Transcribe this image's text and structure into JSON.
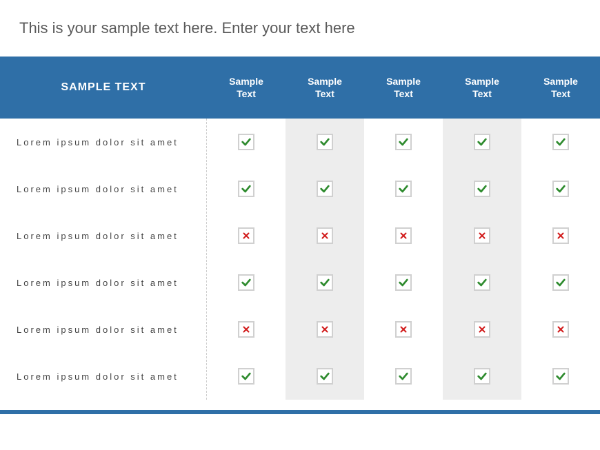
{
  "title": "This is your sample text here. Enter your text here",
  "colors": {
    "header_bg": "#2f6fa7",
    "shaded_col": "#ededed",
    "check": "#2e8b2e",
    "cross": "#d11a1a",
    "title_text": "#5a5a5a",
    "row_text": "#444444"
  },
  "table": {
    "label_header": "SAMPLE TEXT",
    "columns": [
      {
        "label": "Sample\nText",
        "shaded": false
      },
      {
        "label": "Sample\nText",
        "shaded": true
      },
      {
        "label": "Sample\nText",
        "shaded": false
      },
      {
        "label": "Sample\nText",
        "shaded": true
      },
      {
        "label": "Sample\nText",
        "shaded": false
      }
    ],
    "rows": [
      {
        "label": "Lorem ipsum dolor sit amet",
        "marks": [
          "check",
          "check",
          "check",
          "check",
          "check"
        ]
      },
      {
        "label": "Lorem ipsum dolor sit amet",
        "marks": [
          "check",
          "check",
          "check",
          "check",
          "check"
        ]
      },
      {
        "label": "Lorem ipsum dolor sit amet",
        "marks": [
          "cross",
          "cross",
          "cross",
          "cross",
          "cross"
        ]
      },
      {
        "label": "Lorem ipsum dolor sit amet",
        "marks": [
          "check",
          "check",
          "check",
          "check",
          "check"
        ]
      },
      {
        "label": "Lorem ipsum dolor sit amet",
        "marks": [
          "cross",
          "cross",
          "cross",
          "cross",
          "cross"
        ]
      },
      {
        "label": "Lorem ipsum dolor sit amet",
        "marks": [
          "check",
          "check",
          "check",
          "check",
          "check"
        ]
      }
    ]
  }
}
